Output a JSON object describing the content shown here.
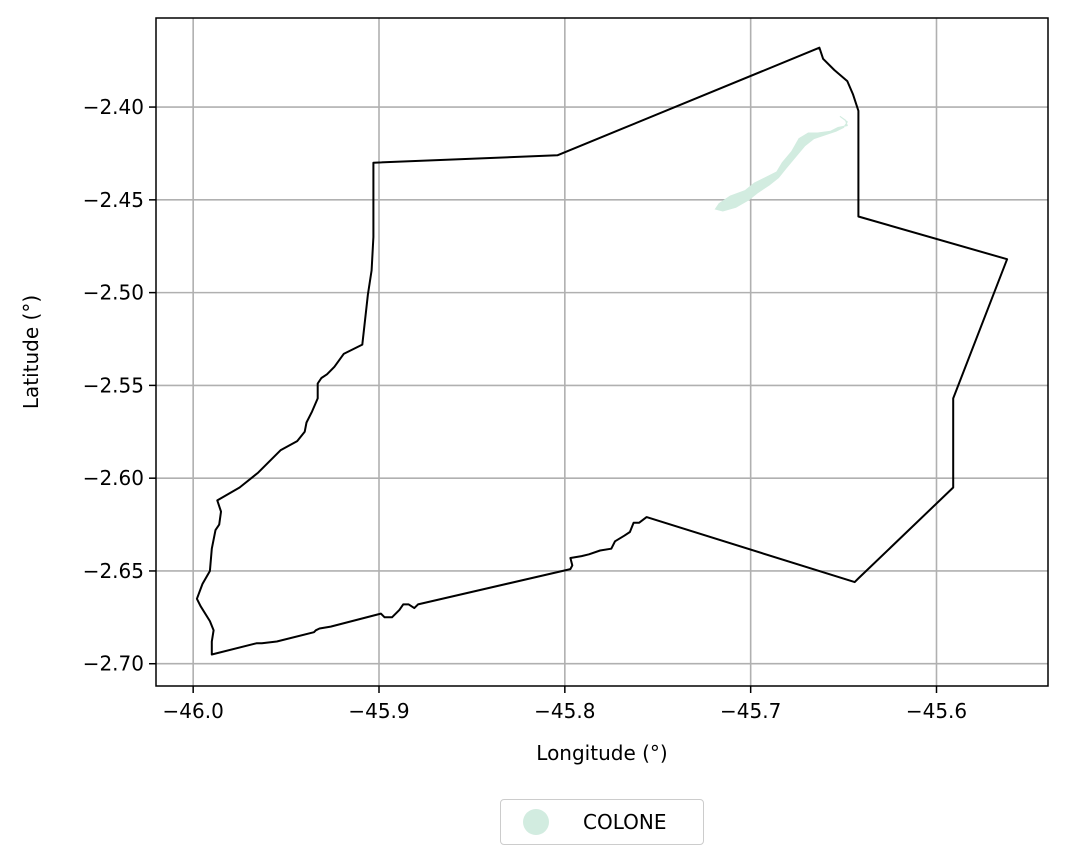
{
  "chart_data": {
    "type": "map",
    "xlabel": "Longitude (°)",
    "ylabel": "Latitude (°)",
    "xlim": [
      -46.02,
      -45.54
    ],
    "ylim": [
      -2.712,
      -2.352
    ],
    "xticks": [
      -46.0,
      -45.9,
      -45.8,
      -45.7,
      -45.6
    ],
    "xtick_labels": [
      "−46.0",
      "−45.9",
      "−45.8",
      "−45.7",
      "−45.6"
    ],
    "yticks": [
      -2.4,
      -2.45,
      -2.5,
      -2.55,
      -2.6,
      -2.65,
      -2.7
    ],
    "ytick_labels": [
      "−2.40",
      "−2.45",
      "−2.50",
      "−2.55",
      "−2.60",
      "−2.65",
      "−2.70"
    ],
    "grid": true,
    "boundary": {
      "color": "#000000",
      "coordinates": [
        [
          -45.663,
          -2.368
        ],
        [
          -45.661,
          -2.374
        ],
        [
          -45.655,
          -2.38
        ],
        [
          -45.648,
          -2.386
        ],
        [
          -45.645,
          -2.393
        ],
        [
          -45.642,
          -2.402
        ],
        [
          -45.642,
          -2.459
        ],
        [
          -45.562,
          -2.482
        ],
        [
          -45.591,
          -2.557
        ],
        [
          -45.591,
          -2.605
        ],
        [
          -45.642,
          -2.654
        ],
        [
          -45.644,
          -2.656
        ],
        [
          -45.756,
          -2.621
        ],
        [
          -45.76,
          -2.624
        ],
        [
          -45.763,
          -2.624
        ],
        [
          -45.765,
          -2.629
        ],
        [
          -45.768,
          -2.631
        ],
        [
          -45.773,
          -2.634
        ],
        [
          -45.775,
          -2.638
        ],
        [
          -45.781,
          -2.639
        ],
        [
          -45.787,
          -2.641
        ],
        [
          -45.791,
          -2.642
        ],
        [
          -45.797,
          -2.643
        ],
        [
          -45.796,
          -2.647
        ],
        [
          -45.797,
          -2.649
        ],
        [
          -45.879,
          -2.668
        ],
        [
          -45.881,
          -2.67
        ],
        [
          -45.884,
          -2.668
        ],
        [
          -45.887,
          -2.668
        ],
        [
          -45.889,
          -2.671
        ],
        [
          -45.893,
          -2.675
        ],
        [
          -45.897,
          -2.675
        ],
        [
          -45.899,
          -2.673
        ],
        [
          -45.926,
          -2.68
        ],
        [
          -45.932,
          -2.681
        ],
        [
          -45.934,
          -2.682
        ],
        [
          -45.935,
          -2.683
        ],
        [
          -45.955,
          -2.688
        ],
        [
          -45.963,
          -2.689
        ],
        [
          -45.966,
          -2.689
        ],
        [
          -45.99,
          -2.695
        ],
        [
          -45.99,
          -2.688
        ],
        [
          -45.989,
          -2.682
        ],
        [
          -45.991,
          -2.677
        ],
        [
          -45.996,
          -2.669
        ],
        [
          -45.998,
          -2.665
        ],
        [
          -45.995,
          -2.657
        ],
        [
          -45.991,
          -2.65
        ],
        [
          -45.99,
          -2.638
        ],
        [
          -45.988,
          -2.628
        ],
        [
          -45.986,
          -2.625
        ],
        [
          -45.985,
          -2.618
        ],
        [
          -45.987,
          -2.612
        ],
        [
          -45.975,
          -2.605
        ],
        [
          -45.965,
          -2.597
        ],
        [
          -45.953,
          -2.585
        ],
        [
          -45.944,
          -2.58
        ],
        [
          -45.94,
          -2.575
        ],
        [
          -45.939,
          -2.57
        ],
        [
          -45.936,
          -2.564
        ],
        [
          -45.933,
          -2.557
        ],
        [
          -45.933,
          -2.549
        ],
        [
          -45.931,
          -2.546
        ],
        [
          -45.928,
          -2.544
        ],
        [
          -45.924,
          -2.54
        ],
        [
          -45.919,
          -2.533
        ],
        [
          -45.909,
          -2.528
        ],
        [
          -45.906,
          -2.501
        ],
        [
          -45.904,
          -2.488
        ],
        [
          -45.903,
          -2.47
        ],
        [
          -45.903,
          -2.43
        ],
        [
          -45.804,
          -2.426
        ],
        [
          -45.663,
          -2.368
        ]
      ]
    },
    "series": [
      {
        "name": "COLONE",
        "color": "#d2ece0",
        "features": [
          [
            [
              -45.652,
              -2.405
            ],
            [
              -45.649,
              -2.407
            ],
            [
              -45.648,
              -2.41
            ],
            [
              -45.653,
              -2.411
            ],
            [
              -45.657,
              -2.413
            ],
            [
              -45.664,
              -2.414
            ],
            [
              -45.669,
              -2.414
            ],
            [
              -45.674,
              -2.417
            ],
            [
              -45.678,
              -2.424
            ],
            [
              -45.683,
              -2.43
            ],
            [
              -45.686,
              -2.435
            ],
            [
              -45.692,
              -2.438
            ],
            [
              -45.698,
              -2.441
            ],
            [
              -45.703,
              -2.445
            ],
            [
              -45.711,
              -2.448
            ],
            [
              -45.717,
              -2.452
            ],
            [
              -45.719,
              -2.455
            ],
            [
              -45.715,
              -2.456
            ],
            [
              -45.708,
              -2.454
            ],
            [
              -45.701,
              -2.45
            ],
            [
              -45.696,
              -2.446
            ],
            [
              -45.69,
              -2.442
            ],
            [
              -45.685,
              -2.438
            ],
            [
              -45.681,
              -2.433
            ],
            [
              -45.676,
              -2.427
            ],
            [
              -45.671,
              -2.421
            ],
            [
              -45.666,
              -2.417
            ],
            [
              -45.66,
              -2.415
            ],
            [
              -45.654,
              -2.413
            ],
            [
              -45.65,
              -2.411
            ],
            [
              -45.648,
              -2.408
            ],
            [
              -45.652,
              -2.405
            ]
          ]
        ]
      }
    ],
    "legend": {
      "placement": "below",
      "entries": [
        "COLONE"
      ]
    }
  }
}
